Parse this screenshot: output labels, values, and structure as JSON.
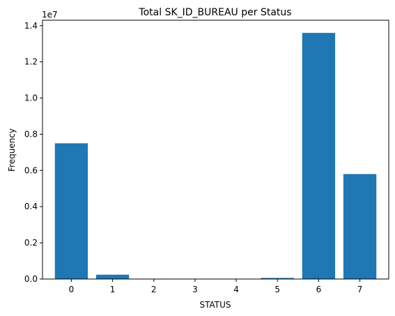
{
  "chart_data": {
    "type": "bar",
    "title": "Total SK_ID_BUREAU per Status",
    "xlabel": "STATUS",
    "ylabel": "Frequency",
    "offset_text": "1e7",
    "categories": [
      "0",
      "1",
      "2",
      "3",
      "4",
      "5",
      "6",
      "7"
    ],
    "values": [
      7500000,
      240000,
      20000,
      15000,
      5000,
      60000,
      13600000,
      5800000
    ],
    "ylim": [
      0,
      14300000
    ],
    "ytick_labels": [
      "0.0",
      "0.2",
      "0.4",
      "0.6",
      "0.8",
      "1.0",
      "1.2",
      "1.4"
    ],
    "ytick_values": [
      0,
      2000000,
      4000000,
      6000000,
      8000000,
      10000000,
      12000000,
      14000000
    ],
    "bar_color": "#1f77b4",
    "grid": false,
    "legend": "none"
  }
}
